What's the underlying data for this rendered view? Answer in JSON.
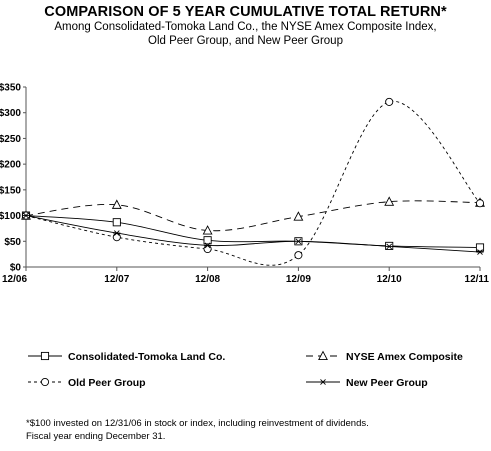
{
  "header": {
    "title": "COMPARISON OF 5 YEAR CUMULATIVE TOTAL RETURN*",
    "subtitle_line1": "Among Consolidated-Tomoka Land Co., the NYSE Amex Composite Index,",
    "subtitle_line2": "Old Peer Group, and New Peer Group"
  },
  "footnote": {
    "line1": "*$100 invested on 12/31/06 in stock or index, including reinvestment of dividends.",
    "line2": "Fiscal year ending December 31."
  },
  "chart_data": {
    "type": "line",
    "categories": [
      "12/06",
      "12/07",
      "12/08",
      "12/09",
      "12/10",
      "12/11"
    ],
    "y_ticks": [
      "$0",
      "$50",
      "$100",
      "$150",
      "$200",
      "$250",
      "$300",
      "$350"
    ],
    "ylim": [
      0,
      350
    ],
    "grid": false,
    "legend_position": "bottom",
    "series": [
      {
        "name": "Consolidated-Tomoka Land Co.",
        "values": [
          100,
          87,
          52,
          50,
          41,
          38
        ],
        "style": "solid",
        "marker": "square"
      },
      {
        "name": "NYSE Amex Composite",
        "values": [
          100,
          121,
          71,
          98,
          127,
          125
        ],
        "style": "long-dash",
        "marker": "triangle"
      },
      {
        "name": "Old Peer Group",
        "values": [
          100,
          58,
          35,
          23,
          321,
          124
        ],
        "style": "short-dash",
        "marker": "circle"
      },
      {
        "name": "New Peer Group",
        "values": [
          100,
          66,
          42,
          50,
          40,
          29
        ],
        "style": "solid",
        "marker": "asterisk"
      }
    ]
  }
}
